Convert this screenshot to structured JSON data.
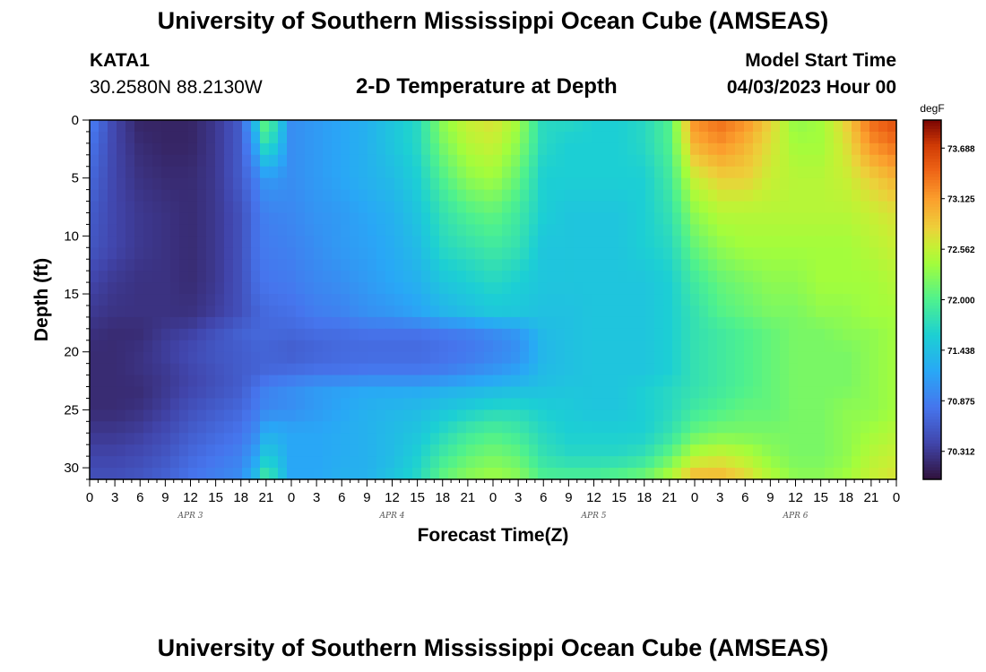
{
  "header": {
    "title": "University of Southern Mississippi Ocean Cube (AMSEAS)",
    "station": "KATA1",
    "coords": "30.2580N  88.2130W",
    "subtitle": "2-D Temperature at Depth",
    "model_start_label": "Model Start Time",
    "model_start_date": "04/03/2023 Hour 00"
  },
  "footer": {
    "title_repeat": "University of Southern Mississippi Ocean Cube (AMSEAS)"
  },
  "chart_data": {
    "type": "heatmap",
    "title": "2-D Temperature at Depth",
    "xlabel": "Forecast Time(Z)",
    "ylabel": "Depth (ft)",
    "x_ticks": [
      "0",
      "3",
      "6",
      "9",
      "12",
      "15",
      "18",
      "21",
      "0",
      "3",
      "6",
      "9",
      "12",
      "15",
      "18",
      "21",
      "0",
      "3",
      "6",
      "9",
      "12",
      "15",
      "18",
      "21",
      "0",
      "3",
      "6",
      "9",
      "12",
      "15",
      "18",
      "21",
      "0"
    ],
    "day_labels": [
      "APR 3",
      "APR 4",
      "APR 5",
      "APR 6"
    ],
    "x_range_hours": [
      0,
      96
    ],
    "y_ticks": [
      0,
      5,
      10,
      15,
      20,
      25,
      30
    ],
    "y_range_ft": [
      0,
      31
    ],
    "y_inverted": true,
    "colorbar": {
      "unit": "degF",
      "labels": [
        "73.688",
        "73.125",
        "72.562",
        "72.000",
        "71.438",
        "70.875",
        "70.312"
      ],
      "range": [
        70.0,
        74.0
      ]
    },
    "x_hours": [
      0,
      3,
      6,
      9,
      12,
      15,
      18,
      20,
      21,
      24,
      27,
      30,
      33,
      36,
      39,
      42,
      45,
      48,
      51,
      54,
      57,
      60,
      63,
      66,
      69,
      72,
      75,
      78,
      81,
      84,
      87,
      90,
      93,
      96
    ],
    "depths_ft": [
      0,
      2,
      5,
      8,
      11,
      14,
      17,
      18,
      20,
      22,
      23,
      25,
      27,
      29,
      31
    ],
    "temps_degF": [
      [
        70.9,
        70.4,
        70.15,
        70.15,
        70.15,
        70.3,
        70.6,
        71.6,
        72.2,
        71.0,
        71.1,
        71.2,
        71.3,
        71.5,
        71.7,
        72.3,
        72.6,
        72.7,
        72.4,
        71.7,
        71.7,
        71.6,
        71.6,
        71.7,
        72.0,
        73.2,
        73.4,
        73.2,
        72.8,
        72.3,
        72.4,
        72.8,
        73.4,
        73.6
      ],
      [
        70.8,
        70.4,
        70.2,
        70.15,
        70.15,
        70.3,
        70.6,
        71.3,
        71.9,
        71.0,
        71.1,
        71.2,
        71.3,
        71.5,
        71.7,
        72.2,
        72.5,
        72.6,
        72.3,
        71.7,
        71.6,
        71.6,
        71.6,
        71.7,
        72.0,
        73.0,
        73.2,
        73.0,
        72.7,
        72.4,
        72.4,
        72.7,
        73.2,
        73.4
      ],
      [
        70.7,
        70.4,
        70.25,
        70.2,
        70.2,
        70.3,
        70.6,
        70.9,
        71.1,
        71.0,
        71.1,
        71.2,
        71.3,
        71.4,
        71.6,
        72.0,
        72.3,
        72.4,
        72.1,
        71.6,
        71.6,
        71.6,
        71.6,
        71.6,
        71.9,
        72.6,
        72.8,
        72.8,
        72.6,
        72.5,
        72.5,
        72.6,
        72.8,
        73.0
      ],
      [
        70.6,
        70.4,
        70.3,
        70.25,
        70.2,
        70.3,
        70.5,
        70.8,
        70.9,
        70.95,
        71.05,
        71.1,
        71.2,
        71.3,
        71.5,
        71.8,
        72.0,
        72.1,
        71.9,
        71.6,
        71.5,
        71.5,
        71.5,
        71.6,
        71.8,
        72.3,
        72.5,
        72.5,
        72.5,
        72.5,
        72.5,
        72.5,
        72.6,
        72.7
      ],
      [
        70.55,
        70.4,
        70.3,
        70.25,
        70.2,
        70.3,
        70.5,
        70.8,
        70.85,
        70.9,
        71.0,
        71.1,
        71.15,
        71.25,
        71.4,
        71.7,
        71.8,
        71.9,
        71.8,
        71.5,
        71.5,
        71.5,
        71.5,
        71.6,
        71.7,
        72.1,
        72.3,
        72.4,
        72.4,
        72.4,
        72.4,
        72.4,
        72.5,
        72.6
      ],
      [
        70.4,
        70.3,
        70.25,
        70.25,
        70.2,
        70.3,
        70.5,
        70.75,
        70.8,
        70.85,
        70.95,
        71.0,
        71.1,
        71.2,
        71.3,
        71.5,
        71.6,
        71.7,
        71.6,
        71.5,
        71.5,
        71.5,
        71.5,
        71.5,
        71.6,
        71.9,
        72.1,
        72.2,
        72.3,
        72.3,
        72.4,
        72.4,
        72.4,
        72.5
      ],
      [
        70.3,
        70.25,
        70.25,
        70.25,
        70.25,
        70.35,
        70.5,
        70.65,
        70.7,
        70.75,
        70.85,
        70.9,
        71.0,
        71.05,
        71.15,
        71.3,
        71.4,
        71.5,
        71.5,
        71.45,
        71.45,
        71.5,
        71.5,
        71.5,
        71.6,
        71.8,
        72.0,
        72.1,
        72.2,
        72.2,
        72.3,
        72.3,
        72.4,
        72.4
      ],
      [
        70.25,
        70.2,
        70.2,
        70.3,
        70.35,
        70.5,
        70.65,
        70.7,
        70.7,
        70.7,
        70.75,
        70.75,
        70.8,
        70.8,
        70.8,
        70.85,
        70.9,
        71.0,
        71.1,
        71.4,
        71.45,
        71.5,
        71.5,
        71.5,
        71.6,
        71.8,
        71.9,
        72.0,
        72.1,
        72.2,
        72.2,
        72.3,
        72.3,
        72.4
      ],
      [
        70.2,
        70.2,
        70.25,
        70.35,
        70.45,
        70.55,
        70.6,
        70.65,
        70.65,
        70.6,
        70.65,
        70.7,
        70.7,
        70.7,
        70.7,
        70.75,
        70.8,
        70.9,
        71.0,
        71.35,
        71.45,
        71.5,
        71.5,
        71.5,
        71.6,
        71.8,
        71.9,
        72.0,
        72.1,
        72.2,
        72.2,
        72.2,
        72.3,
        72.4
      ],
      [
        70.2,
        70.2,
        70.25,
        70.3,
        70.4,
        70.5,
        70.6,
        70.65,
        70.7,
        70.75,
        70.8,
        70.8,
        70.85,
        70.85,
        70.85,
        70.9,
        71.0,
        71.1,
        71.2,
        71.4,
        71.45,
        71.5,
        71.5,
        71.5,
        71.6,
        71.8,
        71.9,
        72.0,
        72.1,
        72.2,
        72.2,
        72.2,
        72.3,
        72.4
      ],
      [
        70.2,
        70.2,
        70.2,
        70.3,
        70.4,
        70.5,
        70.6,
        70.8,
        70.9,
        71.0,
        71.1,
        71.15,
        71.2,
        71.2,
        71.2,
        71.25,
        71.3,
        71.35,
        71.4,
        71.45,
        71.5,
        71.5,
        71.5,
        71.6,
        71.7,
        71.8,
        71.9,
        72.0,
        72.1,
        72.2,
        72.2,
        72.2,
        72.3,
        72.4
      ],
      [
        70.2,
        70.2,
        70.25,
        70.35,
        70.5,
        70.6,
        70.7,
        70.85,
        70.95,
        71.0,
        71.1,
        71.2,
        71.3,
        71.35,
        71.4,
        71.5,
        71.6,
        71.7,
        71.7,
        71.6,
        71.55,
        71.5,
        71.5,
        71.6,
        71.7,
        71.9,
        72.0,
        72.1,
        72.1,
        72.2,
        72.2,
        72.3,
        72.3,
        72.4
      ],
      [
        70.3,
        70.3,
        70.35,
        70.45,
        70.6,
        70.7,
        70.8,
        71.0,
        71.3,
        71.2,
        71.2,
        71.25,
        71.3,
        71.4,
        71.5,
        71.7,
        71.9,
        72.0,
        71.9,
        71.7,
        71.6,
        71.6,
        71.6,
        71.6,
        71.8,
        72.1,
        72.2,
        72.2,
        72.2,
        72.2,
        72.2,
        72.3,
        72.4,
        72.5
      ],
      [
        70.4,
        70.4,
        70.45,
        70.55,
        70.7,
        70.8,
        70.9,
        71.2,
        71.6,
        71.2,
        71.2,
        71.25,
        71.3,
        71.4,
        71.6,
        71.9,
        72.1,
        72.2,
        72.1,
        71.8,
        71.7,
        71.7,
        71.7,
        71.8,
        72.1,
        72.5,
        72.6,
        72.5,
        72.3,
        72.2,
        72.2,
        72.3,
        72.5,
        72.6
      ],
      [
        70.5,
        70.5,
        70.55,
        70.65,
        70.8,
        70.9,
        71.0,
        71.5,
        72.0,
        71.2,
        71.2,
        71.3,
        71.3,
        71.5,
        71.7,
        72.1,
        72.3,
        72.4,
        72.3,
        72.0,
        72.0,
        72.0,
        72.1,
        72.2,
        72.5,
        73.0,
        73.0,
        72.8,
        72.5,
        72.3,
        72.3,
        72.4,
        72.6,
        72.7
      ]
    ]
  }
}
